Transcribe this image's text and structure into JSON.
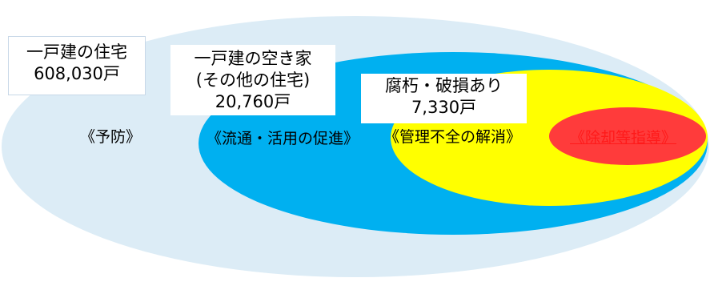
{
  "colors": {
    "outer": "#dcecf6",
    "distribution": "#00b0f0",
    "management": "#ffff00",
    "removal": "#ff3b3b",
    "removal_text": "#ff1a1a"
  },
  "sets": {
    "detached": {
      "lines": [
        "一戸建の住宅",
        "608,030戸"
      ]
    },
    "vacant": {
      "lines": [
        "一戸建の空き家",
        "(その他の住宅)",
        "20,760戸"
      ]
    },
    "decayed": {
      "lines": [
        "腐朽・破損あり",
        "7,330戸"
      ]
    }
  },
  "zones": {
    "prevention": "《予防》",
    "distribution": "《流通・活用の促進》",
    "management": "《管理不全の解消》",
    "removal": "《除却等指導》"
  }
}
